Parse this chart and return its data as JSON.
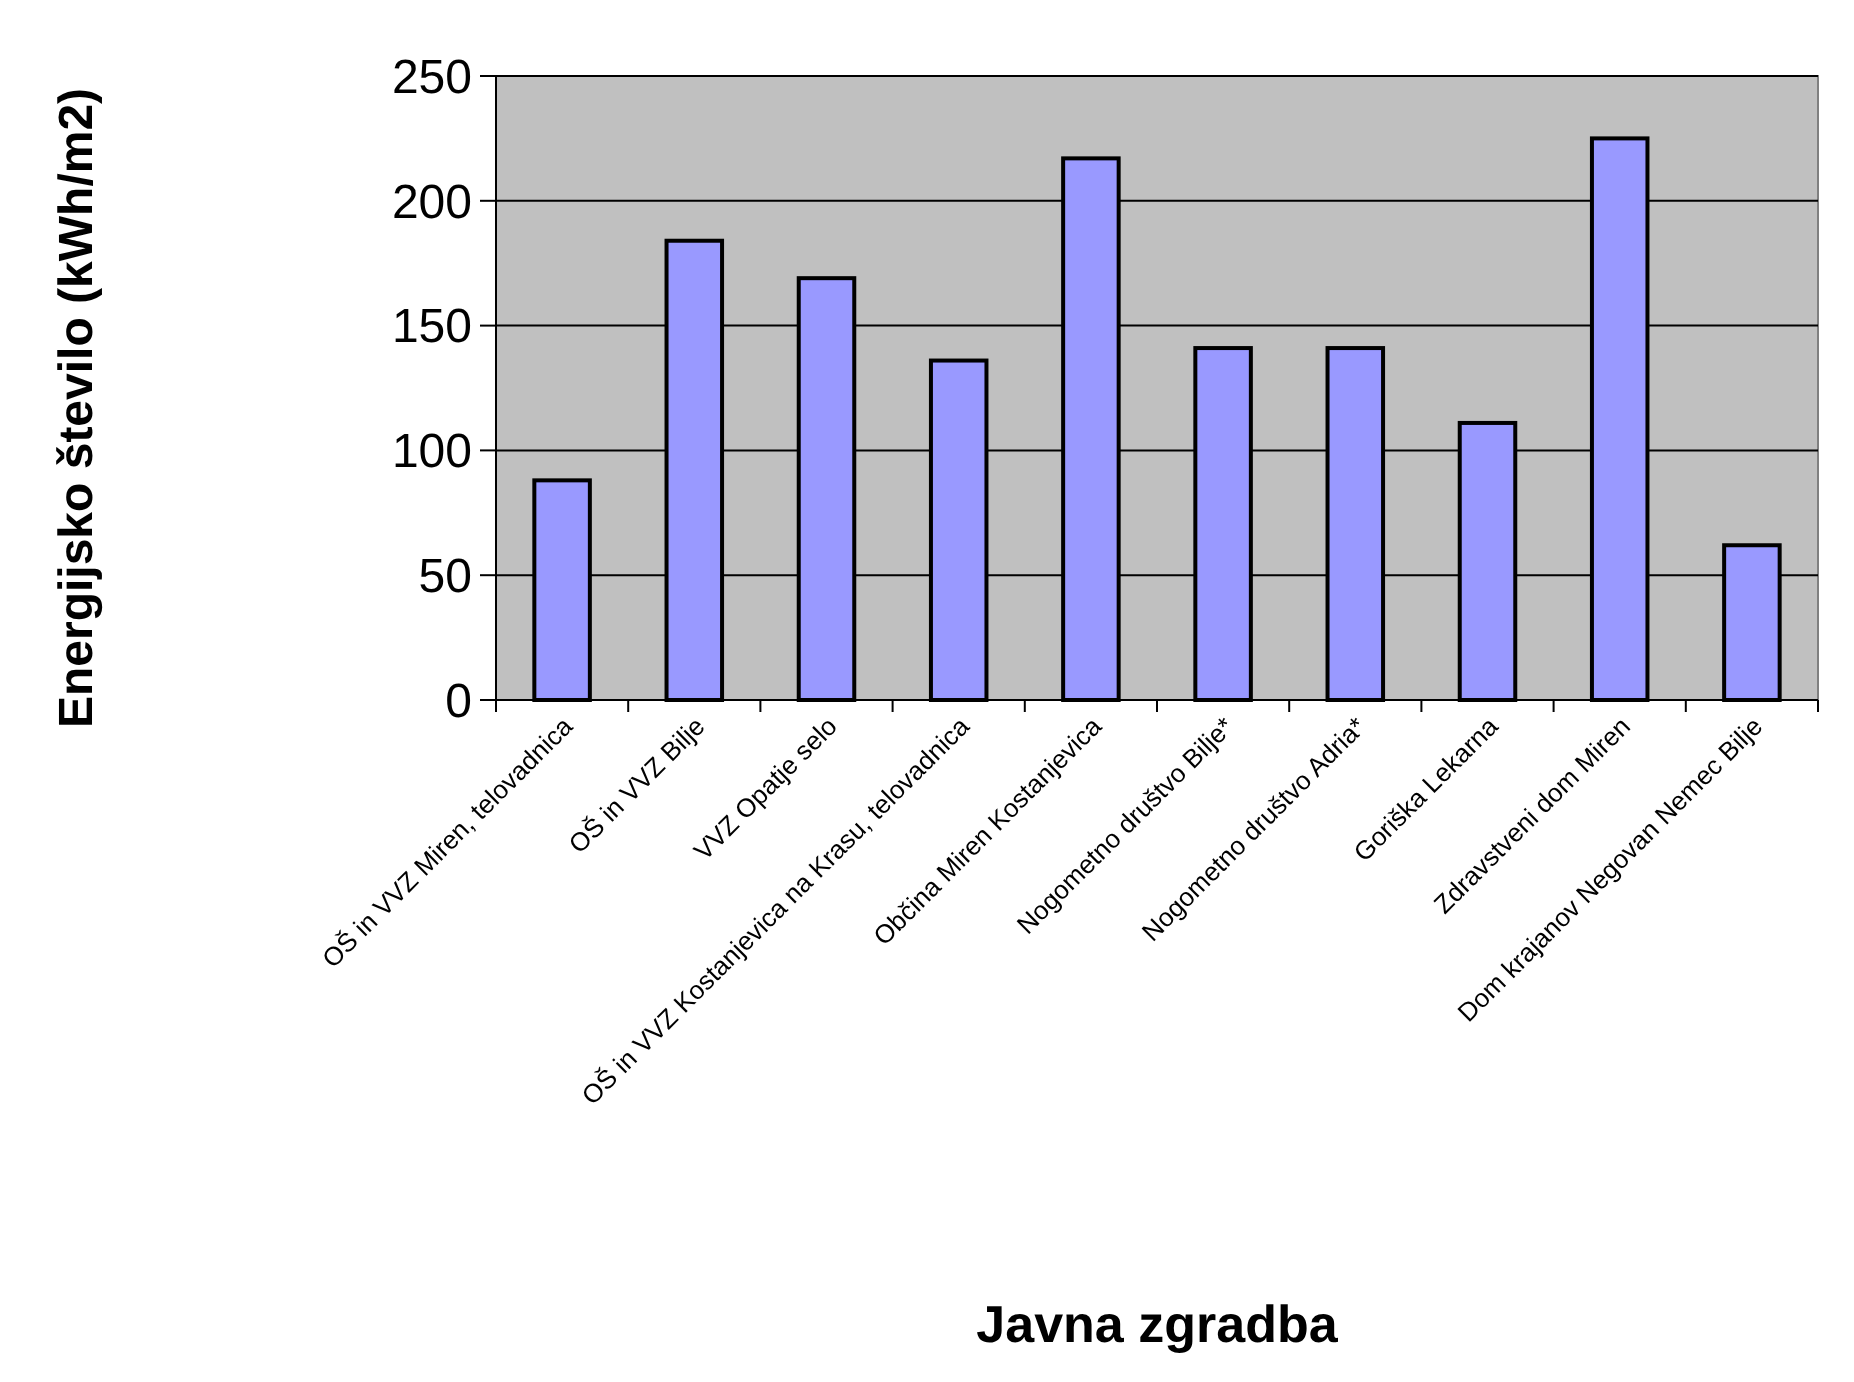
{
  "chart_data": {
    "type": "bar",
    "xlabel": "Javna zgradba",
    "ylabel": "Energijsko število (kWh/m2)",
    "categories": [
      "OŠ in VVZ Miren, telovadnica",
      "OŠ in VVZ Bilje",
      "VVZ Opatje selo",
      "OŠ in VVZ Kostanjevica na Krasu, telovadnica",
      "Občina Miren Kostanjevica",
      "Nogometno društvo Bilje*",
      "Nogometno društvo Adria*",
      "Goriška Lekarna",
      "Zdravstveni dom Miren",
      "Dom krajanov Negovan Nemec Bilje"
    ],
    "values": [
      88,
      184,
      169,
      136,
      217,
      141,
      141,
      111,
      225,
      62
    ],
    "color": "#9999ff",
    "ylim": [
      0,
      250
    ],
    "yticks": [
      0,
      50,
      100,
      150,
      200,
      250
    ],
    "grid": "y"
  }
}
